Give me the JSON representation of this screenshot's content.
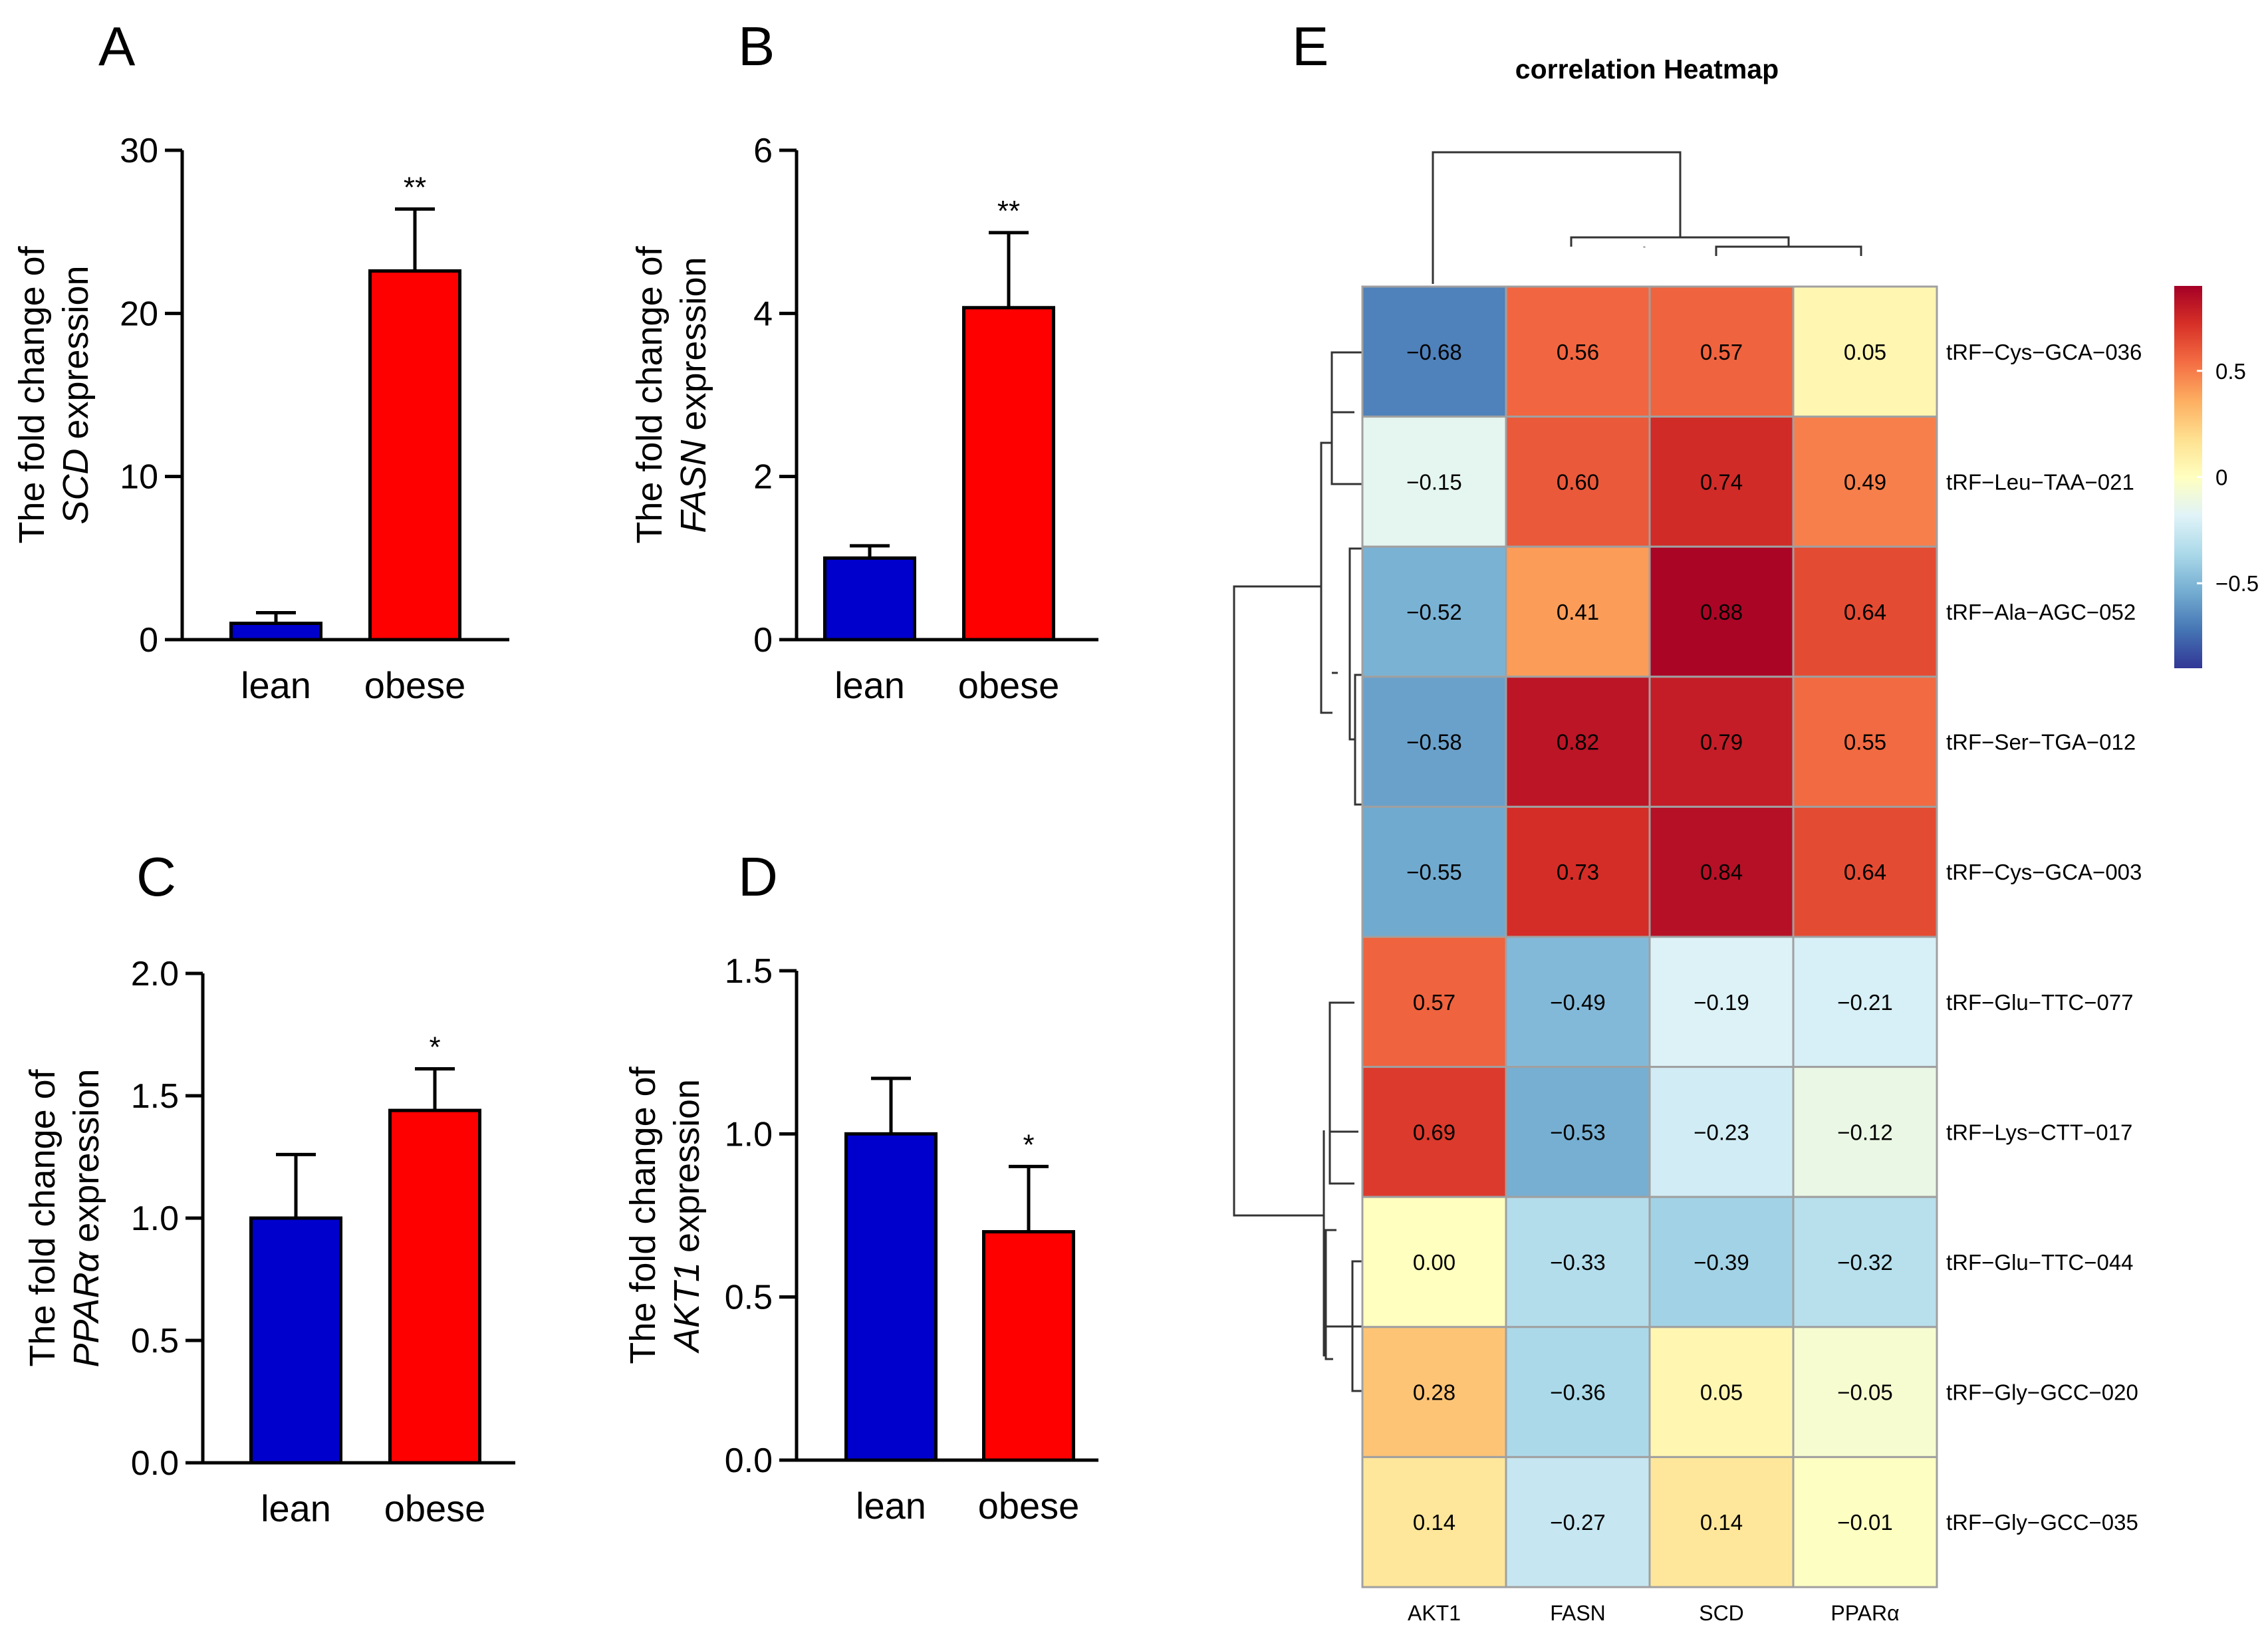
{
  "chart_data": [
    {
      "panel": "A",
      "type": "bar",
      "categories": [
        "lean",
        "obese"
      ],
      "values": [
        1.0,
        22.6
      ],
      "errors": [
        0.65,
        3.8
      ],
      "colors": [
        "#0000CC",
        "#FF0000"
      ],
      "significance": [
        "",
        "**"
      ],
      "ylabel_pre": "The fold change of",
      "gene": "SCD",
      "ylabel_post": "expression",
      "ylim": [
        0,
        30
      ],
      "yticks": [
        0,
        10,
        20,
        30
      ],
      "ytick_labels": [
        "0",
        "10",
        "20",
        "30"
      ]
    },
    {
      "panel": "B",
      "type": "bar",
      "categories": [
        "lean",
        "obese"
      ],
      "values": [
        1.0,
        4.07
      ],
      "errors": [
        0.15,
        0.92
      ],
      "colors": [
        "#0000CC",
        "#FF0000"
      ],
      "significance": [
        "",
        "**"
      ],
      "ylabel_pre": "The fold change of",
      "gene": "FASN",
      "ylabel_post": "expression",
      "ylim": [
        0,
        6
      ],
      "yticks": [
        0,
        2,
        4,
        6
      ],
      "ytick_labels": [
        "0",
        "2",
        "4",
        "6"
      ]
    },
    {
      "panel": "C",
      "type": "bar",
      "categories": [
        "lean",
        "obese"
      ],
      "values": [
        1.0,
        1.44
      ],
      "errors": [
        0.26,
        0.17
      ],
      "colors": [
        "#0000CC",
        "#FF0000"
      ],
      "significance": [
        "",
        "*"
      ],
      "ylabel_pre": "The fold change of",
      "gene": "PPARα",
      "ylabel_post": "expression",
      "ylim": [
        0,
        2.0
      ],
      "yticks": [
        0,
        0.5,
        1.0,
        1.5,
        2.0
      ],
      "ytick_labels": [
        "0.0",
        "0.5",
        "1.0",
        "1.5",
        "2.0"
      ]
    },
    {
      "panel": "D",
      "type": "bar",
      "categories": [
        "lean",
        "obese"
      ],
      "values": [
        1.0,
        0.7
      ],
      "errors": [
        0.17,
        0.2
      ],
      "colors": [
        "#0000CC",
        "#FF0000"
      ],
      "significance": [
        "",
        "*"
      ],
      "ylabel_pre": "The fold change of",
      "gene": "AKT1",
      "ylabel_post": "expression",
      "ylim": [
        0,
        1.5
      ],
      "yticks": [
        0,
        0.5,
        1.0,
        1.5
      ],
      "ytick_labels": [
        "0.0",
        "0.5",
        "1.0",
        "1.5"
      ]
    },
    {
      "panel": "E",
      "type": "heatmap",
      "title": "correlation Heatmap",
      "columns": [
        "AKT1",
        "FASN",
        "SCD",
        "PPARα"
      ],
      "rows": [
        "tRF−Cys−GCA−036",
        "tRF−Leu−TAA−021",
        "tRF−Ala−AGC−052",
        "tRF−Ser−TGA−012",
        "tRF−Cys−GCA−003",
        "tRF−Glu−TTC−077",
        "tRF−Lys−CTT−017",
        "tRF−Glu−TTC−044",
        "tRF−Gly−GCC−020",
        "tRF−Gly−GCC−035"
      ],
      "values": [
        [
          -0.68,
          0.56,
          0.57,
          0.05
        ],
        [
          -0.15,
          0.6,
          0.74,
          0.49
        ],
        [
          -0.52,
          0.41,
          0.88,
          0.64
        ],
        [
          -0.58,
          0.82,
          0.79,
          0.55
        ],
        [
          -0.55,
          0.73,
          0.84,
          0.64
        ],
        [
          0.57,
          -0.49,
          -0.19,
          -0.21
        ],
        [
          0.69,
          -0.53,
          -0.23,
          -0.12
        ],
        [
          0.0,
          -0.33,
          -0.39,
          -0.32
        ],
        [
          0.28,
          -0.36,
          0.05,
          -0.05
        ],
        [
          0.14,
          -0.27,
          0.14,
          -0.01
        ]
      ],
      "labels": [
        [
          "−0.68",
          "0.56",
          "0.57",
          "0.05"
        ],
        [
          "−0.15",
          "0.60",
          "0.74",
          "0.49"
        ],
        [
          "−0.52",
          "0.41",
          "0.88",
          "0.64"
        ],
        [
          "−0.58",
          "0.82",
          "0.79",
          "0.55"
        ],
        [
          "−0.55",
          "0.73",
          "0.84",
          "0.64"
        ],
        [
          "0.57",
          "−0.49",
          "−0.19",
          "−0.21"
        ],
        [
          "0.69",
          "−0.53",
          "−0.23",
          "−0.12"
        ],
        [
          "0.00",
          "−0.33",
          "−0.39",
          "−0.32"
        ],
        [
          "0.28",
          "−0.36",
          "0.05",
          "−0.05"
        ],
        [
          "0.14",
          "−0.27",
          "0.14",
          "−0.01"
        ]
      ],
      "colorbar": {
        "ticks": [
          0.5,
          0,
          -0.5
        ],
        "tick_labels": [
          "0.5",
          "0",
          "−0.5"
        ],
        "range": [
          -0.9,
          0.9
        ],
        "palette": [
          "#313695",
          "#4575B4",
          "#74ADD1",
          "#ABD9E9",
          "#E0F3F8",
          "#FFFFBF",
          "#FEE090",
          "#FDAE61",
          "#F46D43",
          "#D73027",
          "#A50026"
        ]
      }
    }
  ]
}
